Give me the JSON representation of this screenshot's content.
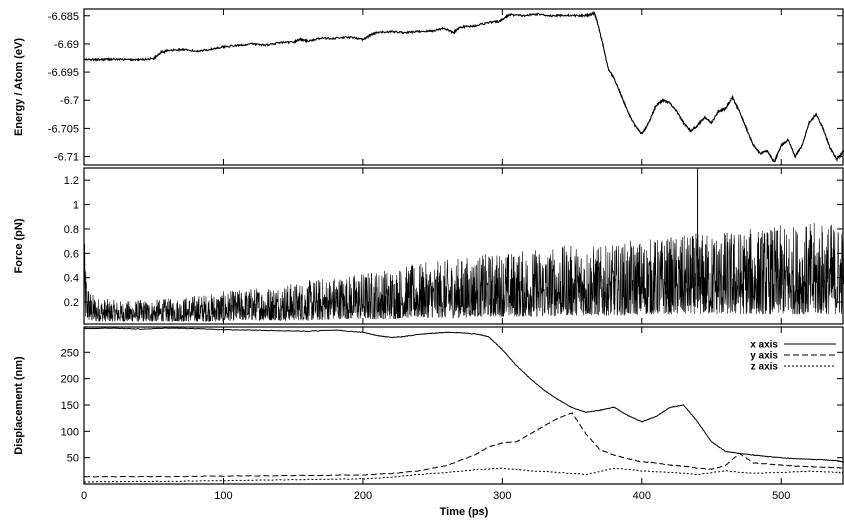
{
  "chart_data": [
    {
      "type": "line",
      "panel": "energy",
      "ylabel": "Energy / Atom (eV)",
      "xlim": [
        0,
        545
      ],
      "ylim": [
        -6.7115,
        -6.6838
      ],
      "y_ticks": [
        -6.685,
        -6.69,
        -6.695,
        -6.7,
        -6.705,
        -6.71
      ],
      "y_tick_labels": [
        "-6.685",
        "-6.69",
        "-6.695",
        "-6.7",
        "-6.705",
        "-6.71"
      ],
      "grid": false,
      "series": [
        {
          "x": [
            0,
            10,
            20,
            30,
            40,
            50,
            55,
            60,
            70,
            80,
            90,
            100,
            110,
            120,
            130,
            140,
            150,
            155,
            160,
            170,
            180,
            190,
            200,
            205,
            210,
            220,
            230,
            240,
            250,
            258,
            265,
            270,
            280,
            290,
            298,
            305,
            315,
            325,
            335,
            345,
            355,
            362,
            366,
            368,
            372,
            376,
            380,
            385,
            390,
            395,
            400,
            405,
            410,
            415,
            420,
            425,
            430,
            435,
            440,
            445,
            450,
            455,
            460,
            465,
            470,
            475,
            480,
            485,
            490,
            495,
            500,
            505,
            510,
            515,
            520,
            525,
            530,
            535,
            540,
            545
          ],
          "y": [
            -6.6928,
            -6.6928,
            -6.6927,
            -6.6928,
            -6.6928,
            -6.6926,
            -6.6915,
            -6.6912,
            -6.691,
            -6.6913,
            -6.691,
            -6.6905,
            -6.6903,
            -6.69,
            -6.6902,
            -6.6898,
            -6.6897,
            -6.6892,
            -6.6895,
            -6.689,
            -6.689,
            -6.6888,
            -6.6892,
            -6.6885,
            -6.688,
            -6.6878,
            -6.688,
            -6.6878,
            -6.6877,
            -6.6872,
            -6.688,
            -6.687,
            -6.6868,
            -6.6862,
            -6.686,
            -6.6848,
            -6.685,
            -6.6847,
            -6.685,
            -6.6849,
            -6.685,
            -6.6849,
            -6.6845,
            -6.686,
            -6.69,
            -6.6945,
            -6.696,
            -6.699,
            -6.702,
            -6.7045,
            -6.706,
            -6.704,
            -6.701,
            -6.7,
            -6.7005,
            -6.702,
            -6.704,
            -6.7055,
            -6.7045,
            -6.703,
            -6.704,
            -6.702,
            -6.7015,
            -6.6995,
            -6.702,
            -6.705,
            -6.708,
            -6.7095,
            -6.709,
            -6.711,
            -6.708,
            -6.707,
            -6.71,
            -6.708,
            -6.704,
            -6.7025,
            -6.705,
            -6.7085,
            -6.7105,
            -6.709
          ]
        }
      ]
    },
    {
      "type": "line",
      "panel": "force",
      "ylabel": "Force (pN)",
      "xlim": [
        0,
        545
      ],
      "ylim": [
        0.02,
        1.3
      ],
      "y_ticks": [
        0.2,
        0.4,
        0.6,
        0.8,
        1.0,
        1.2
      ],
      "y_tick_labels": [
        "0.2",
        "0.4",
        "0.6",
        "0.8",
        "1",
        "1.2"
      ],
      "grid": false,
      "series": [
        {
          "x": [
            0,
            2,
            5,
            10,
            20,
            30,
            40,
            50,
            60,
            70,
            80,
            90,
            100,
            110,
            120,
            130,
            140,
            150,
            160,
            170,
            180,
            190,
            200,
            210,
            220,
            230,
            240,
            250,
            260,
            270,
            280,
            290,
            300,
            310,
            320,
            330,
            340,
            350,
            360,
            370,
            380,
            390,
            400,
            410,
            420,
            430,
            440,
            450,
            460,
            470,
            480,
            490,
            500,
            510,
            520,
            530,
            540,
            545
          ],
          "lower": [
            0.05,
            0.05,
            0.04,
            0.04,
            0.04,
            0.04,
            0.04,
            0.04,
            0.04,
            0.04,
            0.04,
            0.04,
            0.04,
            0.05,
            0.05,
            0.05,
            0.05,
            0.05,
            0.05,
            0.05,
            0.06,
            0.06,
            0.06,
            0.06,
            0.06,
            0.07,
            0.07,
            0.07,
            0.07,
            0.07,
            0.08,
            0.08,
            0.08,
            0.08,
            0.08,
            0.08,
            0.09,
            0.09,
            0.09,
            0.09,
            0.09,
            0.09,
            0.1,
            0.1,
            0.1,
            0.1,
            0.1,
            0.1,
            0.1,
            0.1,
            0.1,
            0.1,
            0.1,
            0.1,
            0.1,
            0.1,
            0.1,
            0.1
          ],
          "upper": [
            0.78,
            0.4,
            0.28,
            0.24,
            0.22,
            0.21,
            0.22,
            0.22,
            0.23,
            0.24,
            0.26,
            0.27,
            0.29,
            0.3,
            0.32,
            0.33,
            0.35,
            0.36,
            0.38,
            0.4,
            0.42,
            0.43,
            0.45,
            0.47,
            0.48,
            0.5,
            0.52,
            0.53,
            0.55,
            0.57,
            0.58,
            0.6,
            0.62,
            0.62,
            0.64,
            0.65,
            0.66,
            0.67,
            0.68,
            0.66,
            0.67,
            0.7,
            0.72,
            0.73,
            0.74,
            0.75,
            0.77,
            0.78,
            0.79,
            0.8,
            0.81,
            0.82,
            0.83,
            0.84,
            0.85,
            0.86,
            0.86,
            0.86
          ]
        }
      ]
    },
    {
      "type": "line",
      "panel": "displacement",
      "ylabel": "Displacement (nm)",
      "xlabel": "Time (ps)",
      "xlim": [
        0,
        545
      ],
      "ylim": [
        0,
        298
      ],
      "x_ticks": [
        0,
        100,
        200,
        300,
        400,
        500
      ],
      "x_tick_labels": [
        "0",
        "100",
        "200",
        "300",
        "400",
        "500"
      ],
      "y_ticks": [
        50,
        100,
        150,
        200,
        250
      ],
      "y_tick_labels": [
        "50",
        "100",
        "150",
        "200",
        "250"
      ],
      "grid": false,
      "legend": "top-right",
      "series": [
        {
          "name": "x axis",
          "dash": "solid",
          "x": [
            0,
            20,
            40,
            60,
            80,
            100,
            120,
            140,
            160,
            180,
            200,
            210,
            220,
            230,
            240,
            250,
            260,
            270,
            280,
            290,
            300,
            310,
            320,
            330,
            340,
            350,
            360,
            370,
            380,
            390,
            400,
            410,
            420,
            430,
            440,
            450,
            460,
            470,
            480,
            490,
            500,
            510,
            520,
            530,
            540,
            545
          ],
          "y": [
            295,
            296,
            294,
            296,
            295,
            293,
            292,
            291,
            290,
            292,
            288,
            282,
            278,
            280,
            284,
            286,
            288,
            287,
            285,
            280,
            255,
            225,
            200,
            178,
            160,
            145,
            136,
            140,
            146,
            130,
            118,
            128,
            145,
            150,
            118,
            80,
            62,
            58,
            55,
            52,
            50,
            48,
            47,
            46,
            44,
            42
          ]
        },
        {
          "name": "y axis",
          "dash": "dashed",
          "x": [
            0,
            50,
            100,
            150,
            200,
            220,
            240,
            260,
            280,
            290,
            300,
            310,
            320,
            330,
            340,
            350,
            360,
            370,
            380,
            390,
            400,
            410,
            420,
            430,
            440,
            450,
            460,
            470,
            480,
            490,
            500,
            510,
            520,
            530,
            540,
            545
          ],
          "y": [
            14,
            14,
            15,
            16,
            17,
            20,
            25,
            35,
            55,
            70,
            78,
            80,
            95,
            110,
            125,
            135,
            95,
            65,
            55,
            48,
            42,
            40,
            36,
            34,
            30,
            28,
            35,
            58,
            40,
            38,
            36,
            34,
            33,
            32,
            31,
            30
          ]
        },
        {
          "name": "z axis",
          "dash": "dotted",
          "x": [
            0,
            50,
            100,
            150,
            200,
            220,
            240,
            260,
            280,
            300,
            320,
            340,
            360,
            380,
            400,
            420,
            440,
            460,
            480,
            500,
            520,
            540,
            545
          ],
          "y": [
            4,
            5,
            6,
            8,
            10,
            13,
            18,
            22,
            27,
            30,
            25,
            22,
            18,
            30,
            25,
            22,
            18,
            25,
            20,
            22,
            24,
            22,
            21
          ]
        }
      ]
    }
  ]
}
